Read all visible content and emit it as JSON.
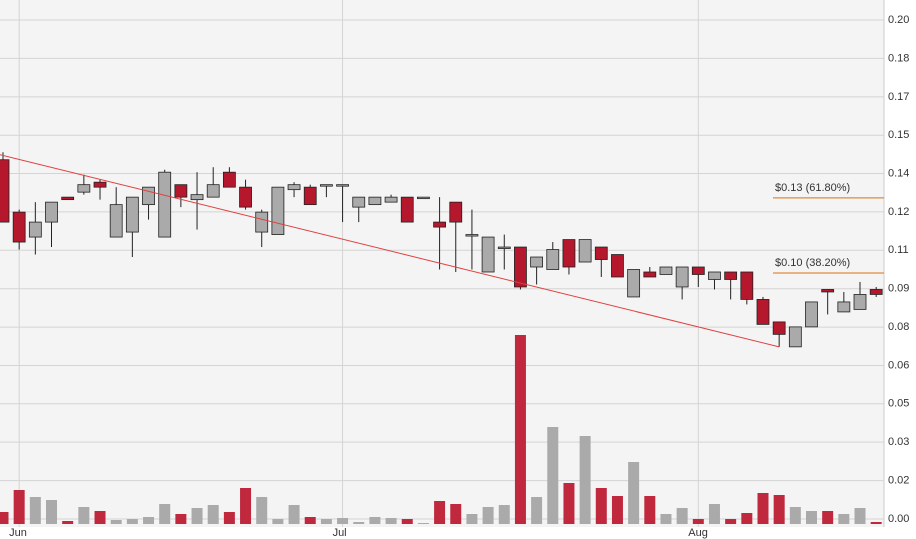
{
  "chart_data": {
    "type": "candlestick",
    "categories": [
      null,
      "Jun",
      null,
      null,
      null,
      null,
      null,
      null,
      null,
      null,
      null,
      null,
      null,
      null,
      null,
      null,
      null,
      null,
      null,
      null,
      null,
      "Jul",
      null,
      null,
      null,
      null,
      null,
      null,
      null,
      null,
      null,
      null,
      null,
      null,
      null,
      null,
      null,
      null,
      null,
      null,
      null,
      null,
      null,
      "Aug",
      null,
      null,
      null,
      null,
      null,
      null,
      null,
      null,
      null,
      null,
      null
    ],
    "open": [
      0.144,
      0.123,
      0.113,
      0.119,
      0.129,
      0.131,
      0.135,
      0.113,
      0.115,
      0.126,
      0.113,
      0.134,
      0.128,
      0.129,
      0.139,
      0.133,
      0.115,
      0.114,
      0.132,
      0.133,
      0.134,
      0.134,
      0.125,
      0.126,
      0.127,
      0.129,
      0.129,
      0.119,
      0.127,
      0.114,
      0.099,
      0.109,
      0.109,
      0.101,
      0.1,
      0.112,
      0.103,
      0.109,
      0.106,
      0.089,
      0.099,
      0.098,
      0.093,
      0.101,
      0.096,
      0.099,
      0.099,
      0.088,
      0.079,
      0.069,
      0.077,
      0.092,
      0.083,
      0.084,
      0.092
    ],
    "high": [
      0.147,
      0.124,
      0.127,
      0.127,
      0.129,
      0.138,
      0.136,
      0.133,
      0.129,
      0.133,
      0.14,
      0.134,
      0.139,
      0.141,
      0.141,
      0.136,
      0.124,
      0.133,
      0.135,
      0.134,
      0.134,
      0.134,
      0.129,
      0.129,
      0.13,
      0.129,
      0.129,
      0.129,
      0.127,
      0.124,
      0.113,
      0.114,
      0.109,
      0.105,
      0.111,
      0.112,
      0.112,
      0.109,
      0.106,
      0.1,
      0.101,
      0.101,
      0.101,
      0.101,
      0.099,
      0.099,
      0.099,
      0.089,
      0.079,
      0.077,
      0.087,
      0.092,
      0.091,
      0.095,
      0.093
    ],
    "low": [
      0.119,
      0.108,
      0.106,
      0.109,
      0.128,
      0.13,
      0.128,
      0.113,
      0.105,
      0.12,
      0.113,
      0.125,
      0.116,
      0.129,
      0.133,
      0.124,
      0.109,
      0.114,
      0.129,
      0.126,
      0.129,
      0.119,
      0.119,
      0.126,
      0.127,
      0.119,
      0.129,
      0.1,
      0.099,
      0.1,
      0.099,
      0.1,
      0.092,
      0.094,
      0.1,
      0.098,
      0.103,
      0.097,
      0.097,
      0.089,
      0.097,
      0.098,
      0.088,
      0.093,
      0.092,
      0.088,
      0.086,
      0.078,
      0.069,
      0.069,
      0.077,
      0.082,
      0.083,
      0.084,
      0.089
    ],
    "close": [
      0.119,
      0.111,
      0.119,
      0.127,
      0.128,
      0.134,
      0.133,
      0.126,
      0.129,
      0.133,
      0.139,
      0.129,
      0.13,
      0.134,
      0.133,
      0.125,
      0.123,
      0.133,
      0.134,
      0.126,
      0.134,
      0.134,
      0.129,
      0.129,
      0.129,
      0.119,
      0.129,
      0.117,
      0.119,
      0.114,
      0.113,
      0.109,
      0.093,
      0.105,
      0.108,
      0.101,
      0.112,
      0.104,
      0.097,
      0.1,
      0.097,
      0.101,
      0.101,
      0.098,
      0.099,
      0.096,
      0.088,
      0.078,
      0.074,
      0.077,
      0.087,
      0.091,
      0.087,
      0.09,
      0.09
    ],
    "volume": [
      12,
      34,
      27,
      24,
      3,
      17,
      13,
      4,
      5,
      7,
      20,
      10,
      16,
      19,
      12,
      36,
      27,
      5,
      19,
      7,
      5,
      6,
      2,
      7,
      6,
      5,
      1,
      23,
      20,
      10,
      17,
      19,
      189,
      27,
      97,
      41,
      88,
      36,
      28,
      62,
      28,
      10,
      16,
      5,
      20,
      5,
      11,
      31,
      29,
      17,
      13,
      13,
      10,
      16,
      2
    ],
    "volume_ylim": [
      0,
      499
    ],
    "up_color": "#aaaaaa",
    "down_color": "#b5172d",
    "volume_down_color": "#c0283e",
    "ylim": [
      0,
      0.2
    ],
    "yticks": [
      {
        "value": 0,
        "label": "0.00"
      },
      {
        "value": 0.0154,
        "label": "0.02"
      },
      {
        "value": 0.0308,
        "label": "0.03"
      },
      {
        "value": 0.0462,
        "label": "0.05"
      },
      {
        "value": 0.0615,
        "label": "0.06"
      },
      {
        "value": 0.0769,
        "label": "0.08"
      },
      {
        "value": 0.0923,
        "label": "0.09"
      },
      {
        "value": 0.1077,
        "label": "0.11"
      },
      {
        "value": 0.1231,
        "label": "0.12"
      },
      {
        "value": 0.1385,
        "label": "0.14"
      },
      {
        "value": 0.1538,
        "label": "0.15"
      },
      {
        "value": 0.1692,
        "label": "0.17"
      },
      {
        "value": 0.1846,
        "label": "0.18"
      },
      {
        "value": 0.2,
        "label": "0.20"
      }
    ],
    "grid": true,
    "trendline": {
      "from": [
        0,
        0.146
      ],
      "to": [
        48,
        0.069
      ],
      "color": "#e04040"
    },
    "levels": [
      {
        "label": "$0.13 (61.80%)",
        "value": 0.1287
      },
      {
        "label": "$0.10 (38.20%)",
        "value": 0.0986
      }
    ],
    "level_color": "#e08a3c"
  }
}
